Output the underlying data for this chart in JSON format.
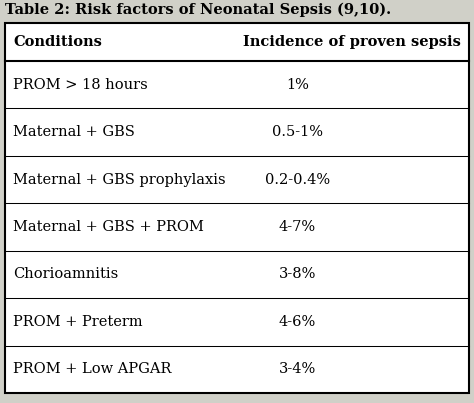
{
  "title": "Table 2: Risk factors of Neonatal Sepsis (9,10).",
  "col_headers": [
    "Conditions",
    "Incidence of proven sepsis"
  ],
  "rows": [
    [
      "PROM > 18 hours",
      "1%"
    ],
    [
      "Maternal + GBS",
      "0.5-1%"
    ],
    [
      "Maternal + GBS prophylaxis",
      "0.2-0.4%"
    ],
    [
      "Maternal + GBS + PROM",
      "4-7%"
    ],
    [
      "Chorioamnitis",
      "3-8%"
    ],
    [
      "PROM + Preterm",
      "4-6%"
    ],
    [
      "PROM + Low APGAR",
      "3-4%"
    ]
  ],
  "bg_color": "#d0d0c8",
  "table_bg": "#ffffff",
  "border_color": "#000000",
  "title_fontsize": 10.5,
  "header_fontsize": 10.5,
  "row_fontsize": 10.5,
  "figsize": [
    4.74,
    4.03
  ],
  "dpi": 100
}
